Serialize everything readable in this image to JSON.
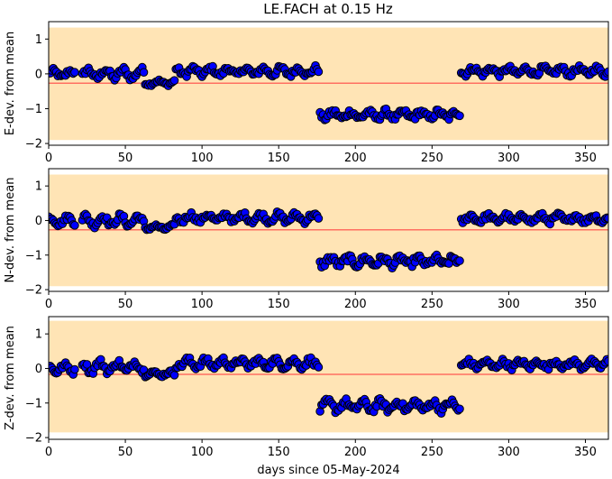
{
  "title": "LE.FACH at 0.15 Hz",
  "colors": {
    "band": "#ffe4b5",
    "marker_face": "#0000ff",
    "marker_edge": "#000000",
    "ref_line": "#ff6f61",
    "axes": "#000000"
  },
  "chart_data": [
    {
      "type": "scatter",
      "ylabel": "E-dev. from mean",
      "xlabel": "",
      "xlim": [
        0,
        365
      ],
      "ylim": [
        -2.05,
        1.5
      ],
      "xticks": [
        0,
        50,
        100,
        150,
        200,
        250,
        300,
        350
      ],
      "yticks": [
        -2,
        -1,
        0,
        1
      ],
      "band": [
        -1.9,
        1.33
      ],
      "ref_line": -0.27,
      "segments": [
        {
          "x": [
            0,
            17
          ],
          "base": 0.0,
          "amp": 0.09,
          "noise": 0.07
        },
        {
          "x": [
            22,
            62
          ],
          "base": 0.0,
          "amp": 0.13,
          "noise": 0.09
        },
        {
          "x": [
            63,
            82
          ],
          "base": -0.25,
          "amp": 0.05,
          "noise": 0.05
        },
        {
          "x": [
            83,
            176
          ],
          "base": 0.07,
          "amp": 0.1,
          "noise": 0.08
        },
        {
          "x": [
            177,
            268
          ],
          "base": -1.18,
          "amp": 0.09,
          "noise": 0.09
        },
        {
          "x": [
            269,
            365
          ],
          "base": 0.08,
          "amp": 0.09,
          "noise": 0.08
        }
      ]
    },
    {
      "type": "scatter",
      "ylabel": "N-dev. from mean",
      "xlabel": "",
      "xlim": [
        0,
        365
      ],
      "ylim": [
        -2.05,
        1.5
      ],
      "xticks": [
        0,
        50,
        100,
        150,
        200,
        250,
        300,
        350
      ],
      "yticks": [
        -2,
        -1,
        0,
        1
      ],
      "band": [
        -1.9,
        1.33
      ],
      "ref_line": -0.27,
      "segments": [
        {
          "x": [
            0,
            17
          ],
          "base": 0.0,
          "amp": 0.1,
          "noise": 0.08
        },
        {
          "x": [
            22,
            62
          ],
          "base": 0.0,
          "amp": 0.13,
          "noise": 0.09
        },
        {
          "x": [
            63,
            82
          ],
          "base": -0.2,
          "amp": 0.05,
          "noise": 0.05
        },
        {
          "x": [
            83,
            176
          ],
          "base": 0.08,
          "amp": 0.1,
          "noise": 0.08
        },
        {
          "x": [
            177,
            268
          ],
          "base": -1.18,
          "amp": 0.1,
          "noise": 0.1
        },
        {
          "x": [
            269,
            365
          ],
          "base": 0.06,
          "amp": 0.09,
          "noise": 0.08
        }
      ]
    },
    {
      "type": "scatter",
      "ylabel": "Z-dev. from mean",
      "xlabel": "days since 05-May-2024",
      "xlim": [
        0,
        365
      ],
      "ylim": [
        -2.05,
        1.5
      ],
      "xticks": [
        0,
        50,
        100,
        150,
        200,
        250,
        300,
        350
      ],
      "yticks": [
        -2,
        -1,
        0,
        1
      ],
      "band": [
        -1.85,
        1.38
      ],
      "ref_line": -0.17,
      "segments": [
        {
          "x": [
            0,
            17
          ],
          "base": 0.0,
          "amp": 0.1,
          "noise": 0.08
        },
        {
          "x": [
            22,
            62
          ],
          "base": 0.05,
          "amp": 0.14,
          "noise": 0.1
        },
        {
          "x": [
            63,
            82
          ],
          "base": -0.15,
          "amp": 0.05,
          "noise": 0.05
        },
        {
          "x": [
            83,
            176
          ],
          "base": 0.15,
          "amp": 0.1,
          "noise": 0.09
        },
        {
          "x": [
            177,
            268
          ],
          "base": -1.08,
          "amp": 0.12,
          "noise": 0.1
        },
        {
          "x": [
            269,
            365
          ],
          "base": 0.12,
          "amp": 0.09,
          "noise": 0.08
        }
      ]
    }
  ]
}
